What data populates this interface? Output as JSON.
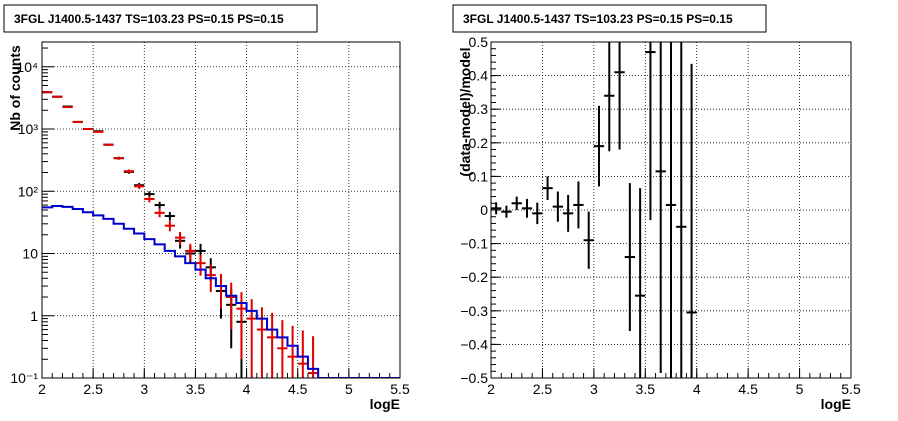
{
  "chart_data": [
    {
      "type": "line",
      "title": "3FGL J1400.5-1437 TS=103.23 PS=0.15 PS=0.15",
      "xlabel": "logE",
      "ylabel": "Nb of counts",
      "xlim": [
        2,
        5.5
      ],
      "ylim": [
        0.1,
        25000
      ],
      "yscale": "log",
      "xticks": [
        "2",
        "2.5",
        "3",
        "3.5",
        "4",
        "4.5",
        "5",
        "5.5"
      ],
      "yticks": [
        "10⁻¹",
        "1",
        "10",
        "10²",
        "10³",
        "10⁴"
      ],
      "grid": true,
      "colors": {
        "data": "#000000",
        "fit": "#e00000",
        "model": "#0000cc"
      },
      "series": [
        {
          "kind": "errorbar",
          "color": "#000000",
          "x": [
            2.05,
            2.15,
            2.25,
            2.35,
            2.45,
            2.55,
            2.65,
            2.75,
            2.85,
            2.95,
            3.05,
            3.15,
            3.25,
            3.35,
            3.45,
            3.55,
            3.65,
            3.75,
            3.85,
            3.95
          ],
          "y": [
            3900,
            3300,
            2300,
            1300,
            1000,
            920,
            560,
            340,
            205,
            125,
            90,
            60,
            40,
            16,
            10,
            11,
            6,
            2.5,
            1.5,
            0.8
          ],
          "err": [
            70,
            60,
            50,
            36,
            32,
            30,
            24,
            18,
            14,
            11,
            9.5,
            7.7,
            6.3,
            4,
            3.2,
            3.3,
            2.4,
            1.6,
            1.2,
            0.9
          ]
        },
        {
          "kind": "errorbar",
          "color": "#e00000",
          "x": [
            2.05,
            2.15,
            2.25,
            2.35,
            2.45,
            2.55,
            2.65,
            2.75,
            2.85,
            2.95,
            3.05,
            3.15,
            3.25,
            3.35,
            3.45,
            3.55,
            3.65,
            3.75,
            3.85,
            3.95,
            4.05,
            4.15,
            4.25,
            4.35,
            4.45,
            4.55,
            4.65
          ],
          "y": [
            3900,
            3300,
            2250,
            1300,
            1000,
            900,
            560,
            340,
            210,
            120,
            75,
            45,
            28,
            18,
            11,
            7,
            4.5,
            3,
            2,
            1.3,
            0.9,
            0.6,
            0.45,
            0.3,
            0.22,
            0.17,
            0.12
          ],
          "err": [
            70,
            60,
            50,
            36,
            32,
            30,
            24,
            18,
            14,
            11,
            8.7,
            6.7,
            5.3,
            4.2,
            3.3,
            2.6,
            2.1,
            1.7,
            1.4,
            1.1,
            0.95,
            0.77,
            0.67,
            0.55,
            0.47,
            0.41,
            0.35
          ]
        },
        {
          "kind": "step",
          "color": "#0000cc",
          "edges": [
            2.0,
            2.1,
            2.2,
            2.3,
            2.4,
            2.5,
            2.6,
            2.7,
            2.8,
            2.9,
            3.0,
            3.1,
            3.2,
            3.3,
            3.4,
            3.5,
            3.6,
            3.7,
            3.8,
            3.9,
            4.0,
            4.1,
            4.2,
            4.3,
            4.4,
            4.5,
            4.6,
            4.7,
            5.0,
            5.5
          ],
          "values": [
            55,
            58,
            56,
            52,
            46,
            41,
            36,
            30,
            25,
            21,
            17,
            14,
            11,
            9,
            7,
            5.5,
            4,
            3,
            2.1,
            1.6,
            1.2,
            0.9,
            0.6,
            0.45,
            0.33,
            0.22,
            0.14,
            0.1,
            0.1
          ]
        }
      ]
    },
    {
      "type": "scatter",
      "title": "3FGL J1400.5-1437 TS=103.23 PS=0.15 PS=0.15",
      "xlabel": "logE",
      "ylabel": "(data-model)/model",
      "xlim": [
        2,
        5.5
      ],
      "ylim": [
        -0.5,
        0.5
      ],
      "xticks": [
        "2",
        "2.5",
        "3",
        "3.5",
        "4",
        "4.5",
        "5",
        "5.5"
      ],
      "yticks": [
        "−0.5",
        "−0.4",
        "−0.3",
        "−0.2",
        "−0.1",
        "0",
        "0.1",
        "0.2",
        "0.3",
        "0.4",
        "0.5"
      ],
      "grid": true,
      "series": [
        {
          "kind": "errorbar",
          "color": "#000000",
          "x": [
            2.05,
            2.15,
            2.25,
            2.35,
            2.45,
            2.55,
            2.65,
            2.75,
            2.85,
            2.95,
            3.05,
            3.15,
            3.25,
            3.35,
            3.45,
            3.55,
            3.65,
            3.75,
            3.85,
            3.95
          ],
          "y": [
            0.005,
            -0.005,
            0.02,
            0.005,
            -0.01,
            0.065,
            0.01,
            -0.01,
            0.015,
            -0.09,
            0.19,
            0.34,
            0.41,
            -0.14,
            -0.255,
            0.47,
            0.115,
            0.015,
            -0.05,
            -0.305
          ],
          "err": [
            0.018,
            0.018,
            0.02,
            0.028,
            0.032,
            0.035,
            0.045,
            0.055,
            0.07,
            0.085,
            0.12,
            0.165,
            0.23,
            0.22,
            0.32,
            0.5,
            0.6,
            0.9,
            1.0,
            0.74
          ]
        }
      ]
    }
  ]
}
